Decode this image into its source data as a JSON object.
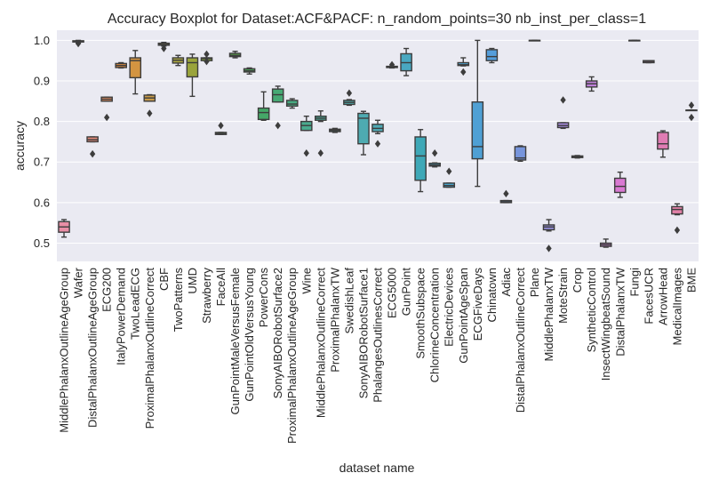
{
  "chart_data": {
    "type": "boxplot",
    "title": "Accuracy Boxplot for Dataset:ACF&PACF: n_random_points=30 nb_inst_per_class=1",
    "xlabel": "dataset name",
    "ylabel": "accuracy",
    "ylim": [
      0.455,
      1.025
    ],
    "yticks": [
      0.5,
      0.6,
      0.7,
      0.8,
      0.9,
      1.0
    ],
    "ytick_labels": [
      "0.5",
      "0.6",
      "0.7",
      "0.8",
      "0.9",
      "1.0"
    ],
    "grid": true,
    "categories": [
      "MiddlePhalanxOutlineAgeGroup",
      "Wafer",
      "DistalPhalanxOutlineAgeGroup",
      "ECG200",
      "ItalyPowerDemand",
      "TwoLeadECG",
      "ProximalPhalanxOutlineCorrect",
      "CBF",
      "TwoPatterns",
      "UMD",
      "Strawberry",
      "FaceAll",
      "GunPointMaleVersusFemale",
      "GunPointOldVersusYoung",
      "PowerCons",
      "SonyAIBORobotSurface2",
      "ProximalPhalanxOutlineAgeGroup",
      "Wine",
      "MiddlePhalanxOutlineCorrect",
      "ProximalPhalanxTW",
      "SwedishLeaf",
      "SonyAIBORobotSurface1",
      "PhalangesOutlinesCorrect",
      "ECG5000",
      "GunPoint",
      "SmoothSubspace",
      "ChlorineConcentration",
      "ElectricDevices",
      "GunPointAgeSpan",
      "ECGFiveDays",
      "Chinatown",
      "Adiac",
      "DistalPhalanxOutlineCorrect",
      "Plane",
      "MiddlePhalanxTW",
      "MoteStrain",
      "Crop",
      "SyntheticControl",
      "InsectWingbeatSound",
      "DistalPhalanxTW",
      "Fungi",
      "FacesUCR",
      "ArrowHead",
      "MedicalImages",
      "BME"
    ],
    "boxes": [
      {
        "whislo": 0.515,
        "q1": 0.527,
        "med": 0.54,
        "q3": 0.553,
        "whishi": 0.558,
        "fliers": [],
        "color": "#e98ea6"
      },
      {
        "whislo": 0.993,
        "q1": 0.996,
        "med": 0.998,
        "q3": 0.999,
        "whishi": 1.0,
        "fliers": [
          0.992
        ],
        "color": "#e27f8c"
      },
      {
        "whislo": 0.75,
        "q1": 0.75,
        "med": 0.755,
        "q3": 0.762,
        "whishi": 0.762,
        "fliers": [
          0.72
        ],
        "color": "#e08878"
      },
      {
        "whislo": 0.85,
        "q1": 0.85,
        "med": 0.855,
        "q3": 0.86,
        "whishi": 0.86,
        "fliers": [
          0.81
        ],
        "color": "#dc8a5e"
      },
      {
        "whislo": 0.932,
        "q1": 0.933,
        "med": 0.938,
        "q3": 0.943,
        "whishi": 0.945,
        "fliers": [],
        "color": "#d6873f"
      },
      {
        "whislo": 0.868,
        "q1": 0.908,
        "med": 0.95,
        "q3": 0.957,
        "whishi": 0.975,
        "fliers": [],
        "color": "#d39441"
      },
      {
        "whislo": 0.85,
        "q1": 0.85,
        "med": 0.858,
        "q3": 0.865,
        "whishi": 0.866,
        "fliers": [
          0.82
        ],
        "color": "#c89a48"
      },
      {
        "whislo": 0.986,
        "q1": 0.988,
        "med": 0.99,
        "q3": 0.993,
        "whishi": 0.995,
        "fliers": [
          0.98
        ],
        "color": "#b79e43"
      },
      {
        "whislo": 0.938,
        "q1": 0.944,
        "med": 0.951,
        "q3": 0.957,
        "whishi": 0.963,
        "fliers": [],
        "color": "#a8a43f"
      },
      {
        "whislo": 0.862,
        "q1": 0.91,
        "med": 0.945,
        "q3": 0.957,
        "whishi": 0.966,
        "fliers": [],
        "color": "#9aa43c"
      },
      {
        "whislo": 0.95,
        "q1": 0.95,
        "med": 0.955,
        "q3": 0.957,
        "whishi": 0.957,
        "fliers": [
          0.948,
          0.966
        ],
        "color": "#86a53d"
      },
      {
        "whislo": 0.768,
        "q1": 0.768,
        "med": 0.77,
        "q3": 0.773,
        "whishi": 0.773,
        "fliers": [
          0.79
        ],
        "color": "#6fa641"
      },
      {
        "whislo": 0.957,
        "q1": 0.96,
        "med": 0.963,
        "q3": 0.968,
        "whishi": 0.973,
        "fliers": [],
        "color": "#5aa84b"
      },
      {
        "whislo": 0.917,
        "q1": 0.922,
        "med": 0.925,
        "q3": 0.93,
        "whishi": 0.932,
        "fliers": [],
        "color": "#4aa75a"
      },
      {
        "whislo": 0.803,
        "q1": 0.805,
        "med": 0.822,
        "q3": 0.833,
        "whishi": 0.873,
        "fliers": [],
        "color": "#45a867"
      },
      {
        "whislo": 0.848,
        "q1": 0.848,
        "med": 0.866,
        "q3": 0.88,
        "whishi": 0.887,
        "fliers": [
          0.79
        ],
        "color": "#46a974"
      },
      {
        "whislo": 0.833,
        "q1": 0.838,
        "med": 0.843,
        "q3": 0.852,
        "whishi": 0.856,
        "fliers": [],
        "color": "#48ab82"
      },
      {
        "whislo": 0.778,
        "q1": 0.778,
        "med": 0.79,
        "q3": 0.8,
        "whishi": 0.813,
        "fliers": [
          0.722
        ],
        "color": "#4aab8f"
      },
      {
        "whislo": 0.8,
        "q1": 0.803,
        "med": 0.808,
        "q3": 0.813,
        "whishi": 0.826,
        "fliers": [
          0.722
        ],
        "color": "#4bab9a"
      },
      {
        "whislo": 0.773,
        "q1": 0.775,
        "med": 0.778,
        "q3": 0.781,
        "whishi": 0.783,
        "fliers": [],
        "color": "#4cab9f"
      },
      {
        "whislo": 0.84,
        "q1": 0.842,
        "med": 0.847,
        "q3": 0.852,
        "whishi": 0.854,
        "fliers": [
          0.87
        ],
        "color": "#4dabab"
      },
      {
        "whislo": 0.718,
        "q1": 0.745,
        "med": 0.808,
        "q3": 0.82,
        "whishi": 0.825,
        "fliers": [],
        "color": "#4eabb1"
      },
      {
        "whislo": 0.77,
        "q1": 0.775,
        "med": 0.783,
        "q3": 0.793,
        "whishi": 0.803,
        "fliers": [
          0.745
        ],
        "color": "#4faab6"
      },
      {
        "whislo": 0.932,
        "q1": 0.933,
        "med": 0.934,
        "q3": 0.936,
        "whishi": 0.936,
        "fliers": [
          0.94
        ],
        "color": "#4fa9bb"
      },
      {
        "whislo": 0.913,
        "q1": 0.925,
        "med": 0.945,
        "q3": 0.967,
        "whishi": 0.98,
        "fliers": [],
        "color": "#49a8c1"
      },
      {
        "whislo": 0.627,
        "q1": 0.655,
        "med": 0.715,
        "q3": 0.762,
        "whishi": 0.78,
        "fliers": [],
        "color": "#3ea8b7"
      },
      {
        "whislo": 0.688,
        "q1": 0.69,
        "med": 0.693,
        "q3": 0.697,
        "whishi": 0.698,
        "fliers": [
          0.722
        ],
        "color": "#41a6c4"
      },
      {
        "whislo": 0.638,
        "q1": 0.638,
        "med": 0.642,
        "q3": 0.648,
        "whishi": 0.648,
        "fliers": [
          0.677
        ],
        "color": "#48a4cb"
      },
      {
        "whislo": 0.937,
        "q1": 0.938,
        "med": 0.94,
        "q3": 0.945,
        "whishi": 0.957,
        "fliers": [
          0.922
        ],
        "color": "#4ca2cf"
      },
      {
        "whislo": 0.64,
        "q1": 0.708,
        "med": 0.738,
        "q3": 0.848,
        "whishi": 1.0,
        "fliers": [],
        "color": "#4fa0d4"
      },
      {
        "whislo": 0.945,
        "q1": 0.95,
        "med": 0.96,
        "q3": 0.977,
        "whishi": 0.98,
        "fliers": [],
        "color": "#559edb"
      },
      {
        "whislo": 0.6,
        "q1": 0.6,
        "med": 0.602,
        "q3": 0.605,
        "whishi": 0.605,
        "fliers": [
          0.622
        ],
        "color": "#6699dc"
      },
      {
        "whislo": 0.702,
        "q1": 0.705,
        "med": 0.71,
        "q3": 0.738,
        "whishi": 0.74,
        "fliers": [],
        "color": "#7795dc"
      },
      {
        "whislo": 1.0,
        "q1": 1.0,
        "med": 1.0,
        "q3": 1.0,
        "whishi": 1.0,
        "fliers": [],
        "color": "#8891dc"
      },
      {
        "whislo": 0.53,
        "q1": 0.533,
        "med": 0.54,
        "q3": 0.545,
        "whishi": 0.558,
        "fliers": [
          0.487
        ],
        "color": "#958edb"
      },
      {
        "whislo": 0.783,
        "q1": 0.785,
        "med": 0.79,
        "q3": 0.797,
        "whishi": 0.797,
        "fliers": [
          0.853
        ],
        "color": "#a489db"
      },
      {
        "whislo": 0.71,
        "q1": 0.711,
        "med": 0.713,
        "q3": 0.715,
        "whishi": 0.716,
        "fliers": [],
        "color": "#b284db"
      },
      {
        "whislo": 0.875,
        "q1": 0.885,
        "med": 0.893,
        "q3": 0.9,
        "whishi": 0.91,
        "fliers": [],
        "color": "#be80d9"
      },
      {
        "whislo": 0.49,
        "q1": 0.492,
        "med": 0.496,
        "q3": 0.5,
        "whishi": 0.51,
        "fliers": [],
        "color": "#cb7cd6"
      },
      {
        "whislo": 0.613,
        "q1": 0.625,
        "med": 0.64,
        "q3": 0.66,
        "whishi": 0.675,
        "fliers": [],
        "color": "#d979d2"
      },
      {
        "whislo": 1.0,
        "q1": 1.0,
        "med": 1.0,
        "q3": 1.0,
        "whishi": 1.0,
        "fliers": [],
        "color": "#dd79c8"
      },
      {
        "whislo": 0.945,
        "q1": 0.945,
        "med": 0.948,
        "q3": 0.95,
        "whishi": 0.95,
        "fliers": [],
        "color": "#de7abc"
      },
      {
        "whislo": 0.712,
        "q1": 0.732,
        "med": 0.745,
        "q3": 0.773,
        "whishi": 0.777,
        "fliers": [],
        "color": "#e07cb3"
      },
      {
        "whislo": 0.57,
        "q1": 0.572,
        "med": 0.583,
        "q3": 0.59,
        "whishi": 0.597,
        "fliers": [
          0.532
        ],
        "color": "#e180a7"
      },
      {
        "whislo": 0.828,
        "q1": 0.828,
        "med": 0.828,
        "q3": 0.828,
        "whishi": 0.828,
        "fliers": [
          0.81,
          0.84
        ],
        "color": "#e2839d"
      }
    ]
  }
}
